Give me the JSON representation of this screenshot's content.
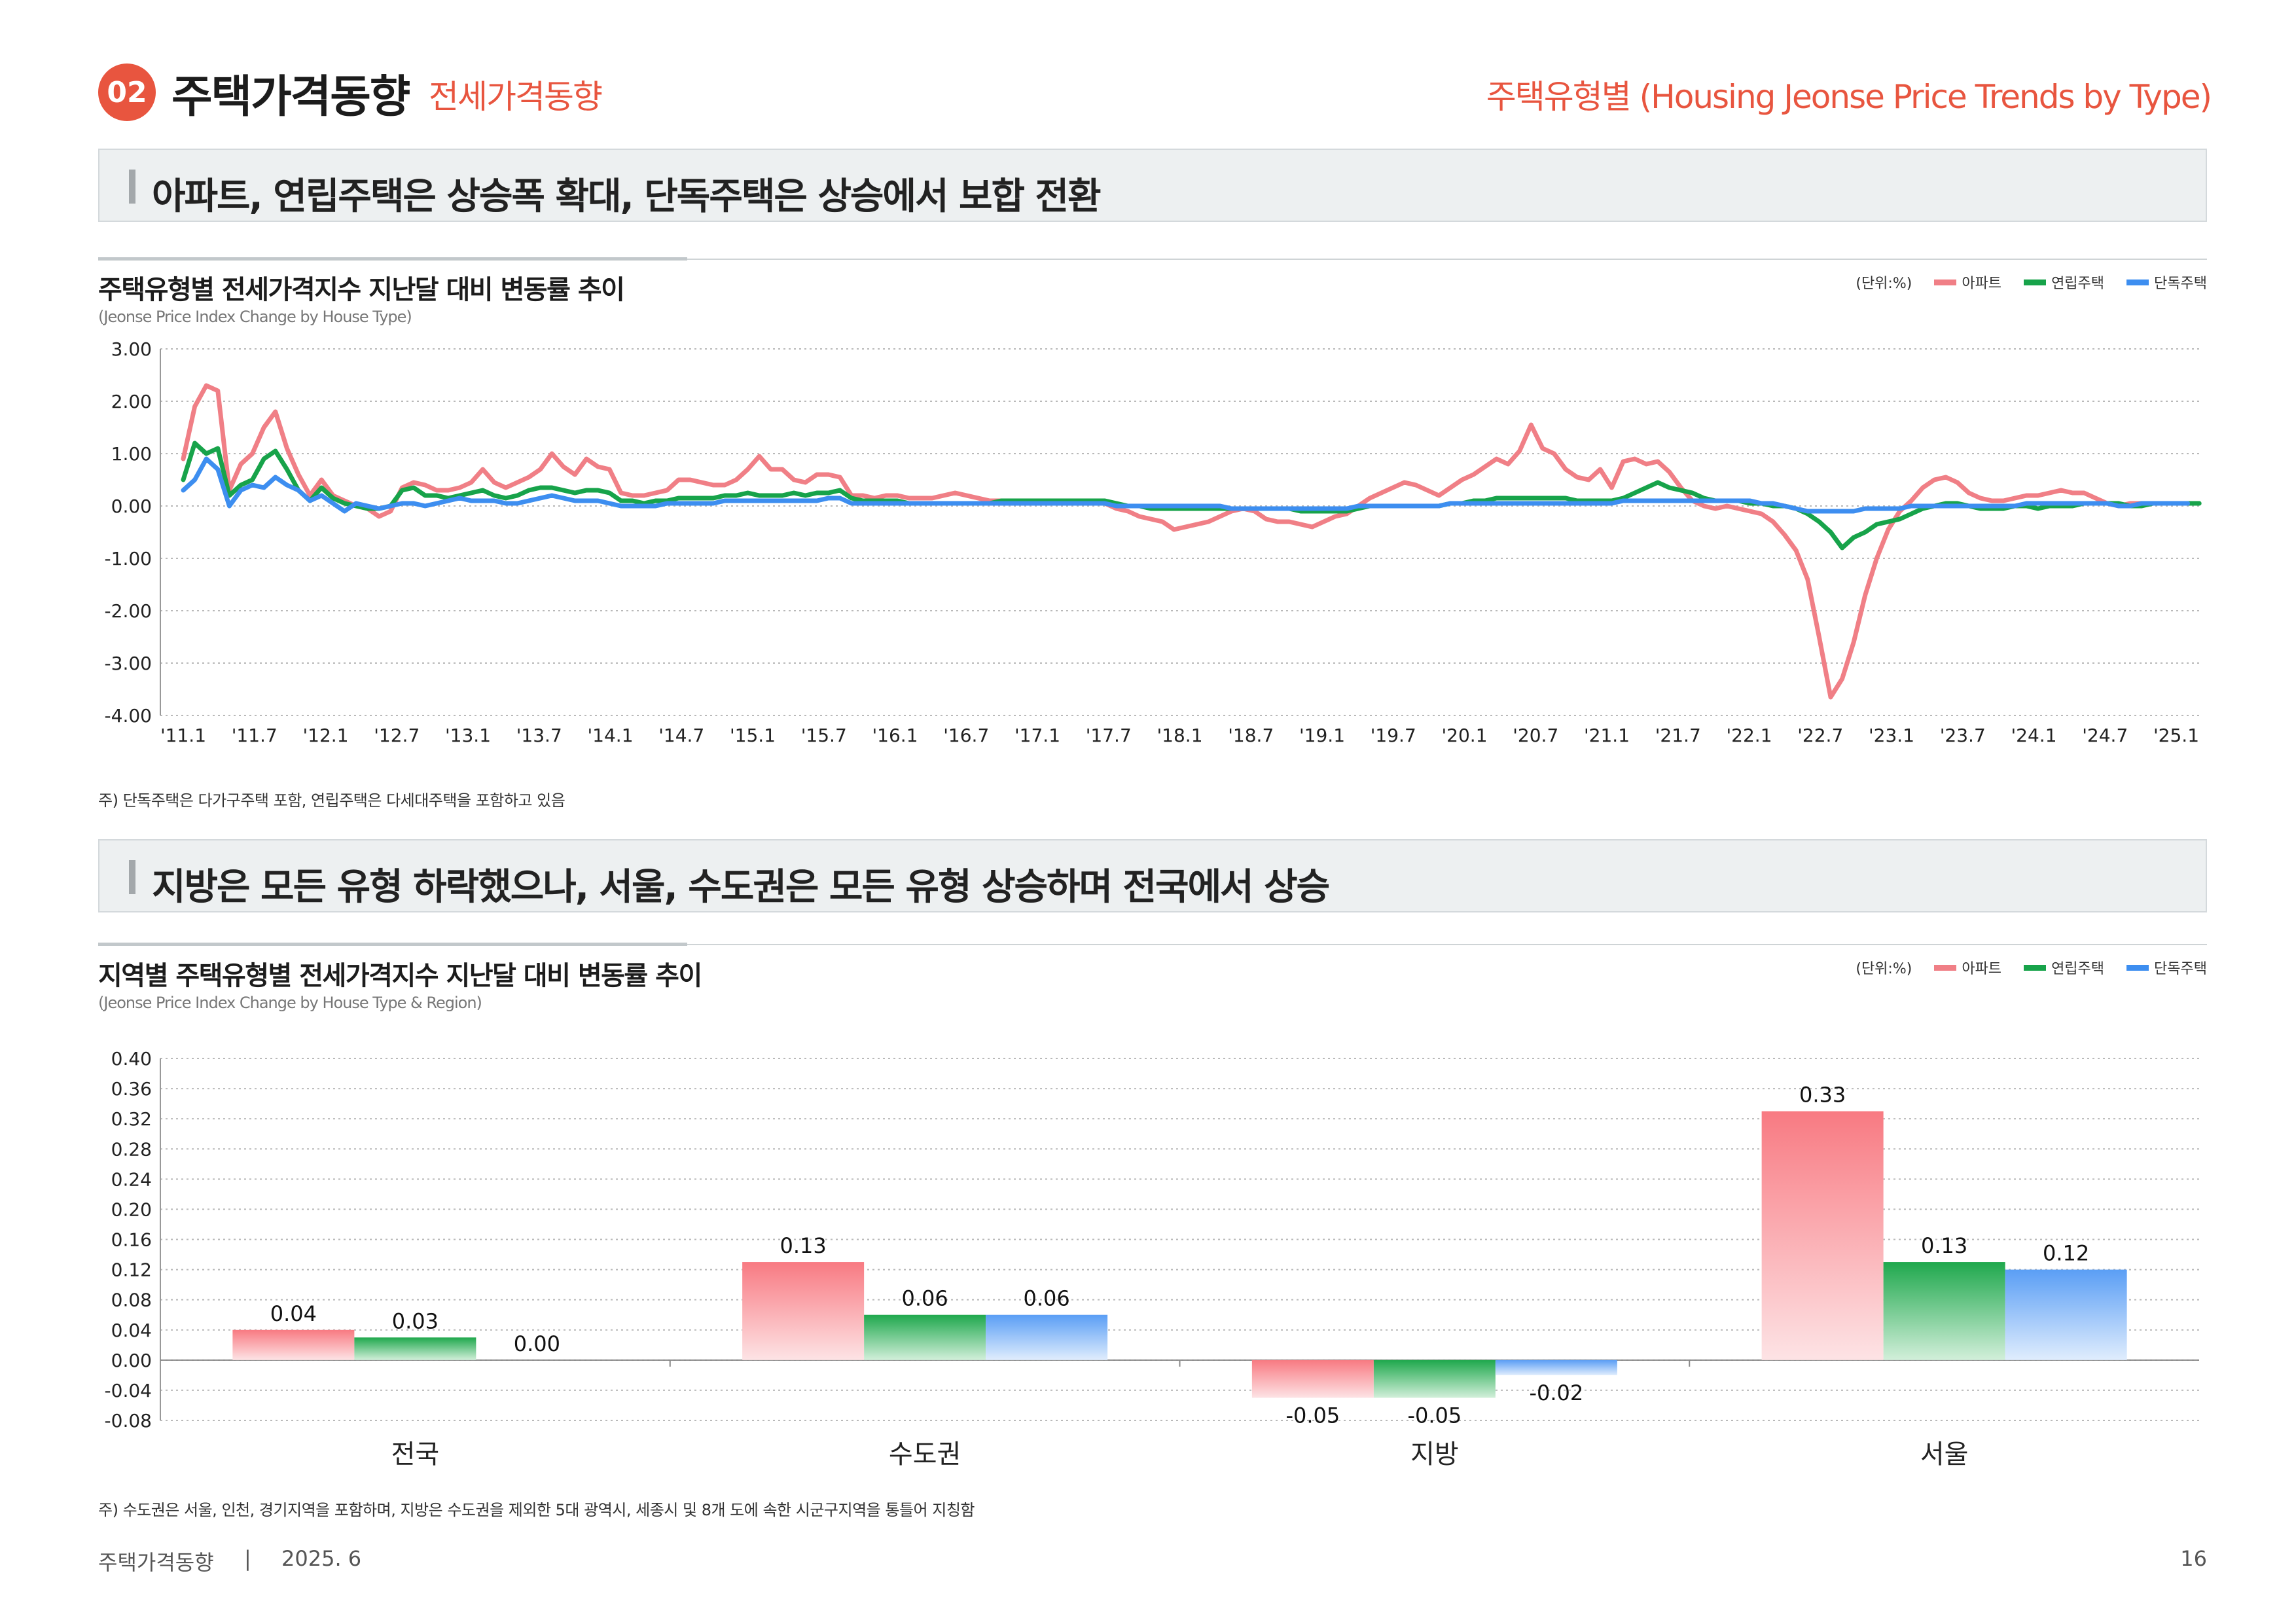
{
  "header": {
    "badge": "02",
    "title": "주택가격동향",
    "subtitle": "전세가격동향",
    "right_title": "주택유형별 (Housing Jeonse Price Trends by Type)"
  },
  "section1": {
    "headline": "아파트, 연립주택은 상승폭 확대, 단독주택은 상승에서 보합 전환"
  },
  "section2": {
    "headline": "지방은 모든 유형 하락했으나, 서울, 수도권은 모든 유형 상승하며 전국에서 상승"
  },
  "legend": {
    "unit": "(단위:%)",
    "apt": "아파트",
    "row": "연립주택",
    "det": "단독주택"
  },
  "colors": {
    "accent": "#e8553f",
    "apt": "#f07f86",
    "row": "#17a34a",
    "det": "#3d8ef0"
  },
  "chart_data": [
    {
      "type": "line",
      "title": "주택유형별 전세가격지수 지난달 대비 변동률 추이",
      "subtitle": "(Jeonse Price Index Change by House Type)",
      "ylim": [
        -4.0,
        3.0
      ],
      "yticks": [
        "3.00",
        "2.00",
        "1.00",
        "0.00",
        "-1.00",
        "-2.00",
        "-3.00",
        "-4.00"
      ],
      "ytick_values": [
        3,
        2,
        1,
        0,
        -1,
        -2,
        -3,
        -4
      ],
      "xtick_labels": [
        "'11.1",
        "'11.7",
        "'12.1",
        "'12.7",
        "'13.1",
        "'13.7",
        "'14.1",
        "'14.7",
        "'15.1",
        "'15.7",
        "'16.1",
        "'16.7",
        "'17.1",
        "'17.7",
        "'18.1",
        "'18.7",
        "'19.1",
        "'19.7",
        "'20.1",
        "'20.7",
        "'21.1",
        "'21.7",
        "'22.1",
        "'22.7",
        "'23.1",
        "'23.7",
        "'24.1",
        "'24.7",
        "'25.1"
      ],
      "note": "주) 단독주택은 다가구주택 포함, 연립주택은 다세대주택을 포함하고 있음",
      "series": [
        {
          "name": "아파트",
          "values": [
            0.9,
            1.9,
            2.3,
            2.2,
            0.3,
            0.8,
            1.0,
            1.5,
            1.8,
            1.1,
            0.6,
            0.2,
            0.5,
            0.2,
            0.1,
            0.0,
            -0.05,
            -0.2,
            -0.1,
            0.35,
            0.45,
            0.4,
            0.3,
            0.3,
            0.35,
            0.45,
            0.7,
            0.45,
            0.35,
            0.45,
            0.55,
            0.7,
            1.0,
            0.75,
            0.6,
            0.9,
            0.75,
            0.7,
            0.25,
            0.2,
            0.2,
            0.25,
            0.3,
            0.5,
            0.5,
            0.45,
            0.4,
            0.4,
            0.5,
            0.7,
            0.95,
            0.7,
            0.7,
            0.5,
            0.45,
            0.6,
            0.6,
            0.55,
            0.2,
            0.2,
            0.15,
            0.2,
            0.2,
            0.15,
            0.15,
            0.15,
            0.2,
            0.25,
            0.2,
            0.15,
            0.1,
            0.1,
            0.1,
            0.1,
            0.1,
            0.1,
            0.1,
            0.1,
            0.1,
            0.1,
            0.05,
            -0.05,
            -0.1,
            -0.2,
            -0.25,
            -0.3,
            -0.45,
            -0.4,
            -0.35,
            -0.3,
            -0.2,
            -0.1,
            -0.05,
            -0.1,
            -0.25,
            -0.3,
            -0.3,
            -0.35,
            -0.4,
            -0.3,
            -0.2,
            -0.15,
            0.0,
            0.15,
            0.25,
            0.35,
            0.45,
            0.4,
            0.3,
            0.2,
            0.35,
            0.5,
            0.6,
            0.75,
            0.9,
            0.8,
            1.05,
            1.55,
            1.1,
            1.0,
            0.7,
            0.55,
            0.5,
            0.7,
            0.35,
            0.85,
            0.9,
            0.8,
            0.85,
            0.65,
            0.35,
            0.1,
            0.0,
            -0.05,
            0.0,
            -0.05,
            -0.1,
            -0.15,
            -0.3,
            -0.55,
            -0.85,
            -1.4,
            -2.5,
            -3.65,
            -3.3,
            -2.6,
            -1.7,
            -1.0,
            -0.45,
            -0.1,
            0.1,
            0.35,
            0.5,
            0.55,
            0.45,
            0.25,
            0.15,
            0.1,
            0.1,
            0.15,
            0.2,
            0.2,
            0.25,
            0.3,
            0.25,
            0.25,
            0.15,
            0.05,
            0.0,
            0.05,
            0.05,
            0.05,
            0.05,
            0.05
          ],
          "color": "#f07f86"
        },
        {
          "name": "연립주택",
          "values": [
            0.5,
            1.2,
            1.0,
            1.1,
            0.2,
            0.4,
            0.5,
            0.9,
            1.05,
            0.7,
            0.3,
            0.1,
            0.35,
            0.15,
            0.05,
            0.0,
            -0.05,
            -0.05,
            0.0,
            0.3,
            0.35,
            0.2,
            0.2,
            0.15,
            0.2,
            0.25,
            0.3,
            0.2,
            0.15,
            0.2,
            0.3,
            0.35,
            0.35,
            0.3,
            0.25,
            0.3,
            0.3,
            0.25,
            0.1,
            0.1,
            0.05,
            0.1,
            0.1,
            0.15,
            0.15,
            0.15,
            0.15,
            0.2,
            0.2,
            0.25,
            0.2,
            0.2,
            0.2,
            0.25,
            0.2,
            0.25,
            0.25,
            0.3,
            0.15,
            0.1,
            0.1,
            0.1,
            0.1,
            0.05,
            0.05,
            0.05,
            0.05,
            0.05,
            0.05,
            0.05,
            0.05,
            0.1,
            0.1,
            0.1,
            0.1,
            0.1,
            0.1,
            0.1,
            0.1,
            0.1,
            0.1,
            0.05,
            0.0,
            0.0,
            -0.05,
            -0.05,
            -0.05,
            -0.05,
            -0.05,
            -0.05,
            -0.05,
            -0.05,
            -0.05,
            -0.05,
            -0.05,
            -0.05,
            -0.05,
            -0.1,
            -0.1,
            -0.1,
            -0.1,
            -0.1,
            -0.05,
            0.0,
            0.0,
            0.0,
            0.0,
            0.0,
            0.0,
            0.0,
            0.05,
            0.05,
            0.1,
            0.1,
            0.15,
            0.15,
            0.15,
            0.15,
            0.15,
            0.15,
            0.15,
            0.1,
            0.1,
            0.1,
            0.1,
            0.15,
            0.25,
            0.35,
            0.45,
            0.35,
            0.3,
            0.25,
            0.15,
            0.1,
            0.1,
            0.1,
            0.05,
            0.05,
            0.0,
            0.0,
            -0.05,
            -0.15,
            -0.3,
            -0.5,
            -0.8,
            -0.6,
            -0.5,
            -0.35,
            -0.3,
            -0.25,
            -0.15,
            -0.05,
            0.0,
            0.05,
            0.05,
            0.0,
            -0.05,
            -0.05,
            -0.05,
            0.0,
            0.0,
            -0.05,
            0.0,
            0.0,
            0.0,
            0.05,
            0.05,
            0.05,
            0.05,
            0.0,
            0.0,
            0.05,
            0.05,
            0.05,
            0.05,
            0.05
          ],
          "color": "#17a34a"
        },
        {
          "name": "단독주택",
          "values": [
            0.3,
            0.5,
            0.9,
            0.7,
            0.0,
            0.3,
            0.4,
            0.35,
            0.55,
            0.4,
            0.3,
            0.1,
            0.2,
            0.05,
            -0.1,
            0.05,
            0.0,
            -0.05,
            0.0,
            0.05,
            0.05,
            0.0,
            0.05,
            0.1,
            0.15,
            0.1,
            0.1,
            0.1,
            0.05,
            0.05,
            0.1,
            0.15,
            0.2,
            0.15,
            0.1,
            0.1,
            0.1,
            0.05,
            0.0,
            0.0,
            0.0,
            0.0,
            0.05,
            0.05,
            0.05,
            0.05,
            0.05,
            0.1,
            0.1,
            0.1,
            0.1,
            0.1,
            0.1,
            0.1,
            0.1,
            0.1,
            0.15,
            0.15,
            0.05,
            0.05,
            0.05,
            0.05,
            0.05,
            0.05,
            0.05,
            0.05,
            0.05,
            0.05,
            0.05,
            0.05,
            0.05,
            0.05,
            0.05,
            0.05,
            0.05,
            0.05,
            0.05,
            0.05,
            0.05,
            0.05,
            0.05,
            0.0,
            0.0,
            0.0,
            0.0,
            0.0,
            0.0,
            0.0,
            0.0,
            0.0,
            0.0,
            -0.05,
            -0.05,
            -0.05,
            -0.05,
            -0.05,
            -0.05,
            -0.05,
            -0.05,
            -0.05,
            -0.05,
            -0.05,
            0.0,
            0.0,
            0.0,
            0.0,
            0.0,
            0.0,
            0.0,
            0.0,
            0.05,
            0.05,
            0.05,
            0.05,
            0.05,
            0.05,
            0.05,
            0.05,
            0.05,
            0.05,
            0.05,
            0.05,
            0.05,
            0.05,
            0.05,
            0.1,
            0.1,
            0.1,
            0.1,
            0.1,
            0.1,
            0.1,
            0.1,
            0.1,
            0.1,
            0.1,
            0.1,
            0.05,
            0.05,
            0.0,
            -0.05,
            -0.1,
            -0.1,
            -0.1,
            -0.1,
            -0.1,
            -0.05,
            -0.05,
            -0.05,
            -0.05,
            0.0,
            0.0,
            0.0,
            0.0,
            0.0,
            0.0,
            0.0,
            0.0,
            0.0,
            0.0,
            0.05,
            0.05,
            0.05,
            0.05,
            0.05,
            0.05,
            0.05,
            0.05,
            0.0,
            0.0,
            0.05,
            0.05,
            0.05,
            0.05,
            0.05
          ],
          "color": "#3d8ef0"
        }
      ]
    },
    {
      "type": "bar",
      "title": "지역별 주택유형별 전세가격지수 지난달 대비 변동률 추이",
      "subtitle": "(Jeonse Price Index Change by House Type & Region)",
      "categories": [
        "전국",
        "수도권",
        "지방",
        "서울"
      ],
      "ylim": [
        -0.08,
        0.4
      ],
      "yticks": [
        "0.40",
        "0.36",
        "0.32",
        "0.28",
        "0.24",
        "0.20",
        "0.16",
        "0.12",
        "0.08",
        "0.04",
        "0.00",
        "-0.04",
        "-0.08"
      ],
      "ytick_values": [
        0.4,
        0.36,
        0.32,
        0.28,
        0.24,
        0.2,
        0.16,
        0.12,
        0.08,
        0.04,
        0.0,
        -0.04,
        -0.08
      ],
      "note": "주) 수도권은 서울, 인천, 경기지역을 포함하며, 지방은 수도권을 제외한 5대 광역시, 세종시 및 8개 도에 속한 시군구지역을 통틀어 지칭함",
      "series": [
        {
          "name": "아파트",
          "values": [
            0.04,
            0.13,
            -0.05,
            0.33
          ],
          "labels": [
            "0.04",
            "0.13",
            "-0.05",
            "0.33"
          ]
        },
        {
          "name": "연립주택",
          "values": [
            0.03,
            0.06,
            -0.05,
            0.13
          ],
          "labels": [
            "0.03",
            "0.06",
            "-0.05",
            "0.13"
          ]
        },
        {
          "name": "단독주택",
          "values": [
            0.0,
            0.06,
            -0.02,
            0.12
          ],
          "labels": [
            "0.00",
            "0.06",
            "-0.02",
            "0.12"
          ]
        }
      ]
    }
  ],
  "footer": {
    "left": "주택가격동향",
    "separator": "|",
    "date": "2025. 6",
    "page": "16"
  }
}
